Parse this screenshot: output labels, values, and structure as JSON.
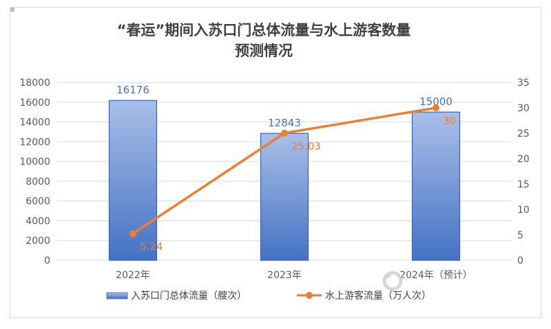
{
  "chart_data": {
    "type": "bar",
    "title_line1": "“春运”期间入苏口门总体流量与水上游客数量",
    "title_line2": "预测情况",
    "categories": [
      "2022年",
      "2023年",
      "2024年（预计）"
    ],
    "series": [
      {
        "name": "入苏口门总体流量（艘次）",
        "type": "bar",
        "axis": "left",
        "values": [
          16176,
          12843,
          15000
        ],
        "labels": [
          "16176",
          "12843",
          "15000"
        ]
      },
      {
        "name": "水上游客流量（万人次）",
        "type": "line",
        "axis": "right",
        "values": [
          5.24,
          25.03,
          30
        ],
        "labels": [
          "5.24",
          "25.03",
          "30"
        ]
      }
    ],
    "y_left": {
      "min": 0,
      "max": 18000,
      "step": 2000,
      "ticks": [
        "0",
        "2000",
        "4000",
        "6000",
        "8000",
        "10000",
        "12000",
        "14000",
        "16000",
        "18000"
      ]
    },
    "y_right": {
      "min": 0,
      "max": 35,
      "step": 5,
      "ticks": [
        "0",
        "5",
        "10",
        "15",
        "20",
        "25",
        "30",
        "35"
      ]
    },
    "grid": true,
    "legend_position": "bottom",
    "colors": {
      "bar_top": "#a9bfe8",
      "bar_bottom": "#4472c4",
      "bar_edge": "#3a62b0",
      "line": "#ed7d31",
      "grid": "#d9d9d9"
    }
  },
  "watermark": {
    "text": "荔枝新闻",
    "icon": "lizhi-logo"
  }
}
